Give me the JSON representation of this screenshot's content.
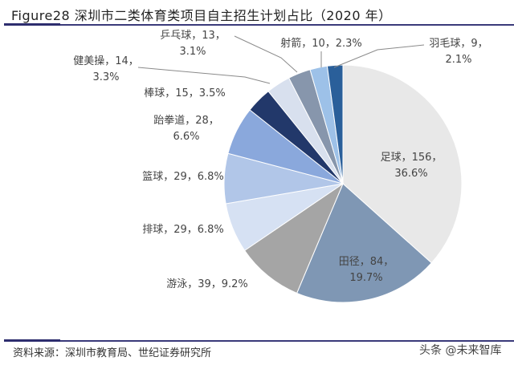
{
  "title": "Figure28 深圳市二类体育类项目自主招生计划占比（2020 年）",
  "source": "资料来源：深圳市教育局、世纪证券研究所",
  "watermark": "头条 @未来智库",
  "chart_data": {
    "type": "pie",
    "title": "深圳市二类体育类项目自主招生计划占比（2020 年）",
    "categories": [
      "足球",
      "田径",
      "游泳",
      "排球",
      "篮球",
      "跆拳道",
      "棒球",
      "健美操",
      "乒乓球",
      "射箭",
      "羽毛球"
    ],
    "values": [
      156,
      84,
      39,
      29,
      29,
      28,
      15,
      14,
      13,
      10,
      9
    ],
    "percentages": [
      36.6,
      19.7,
      9.2,
      6.8,
      6.8,
      6.6,
      3.5,
      3.3,
      3.1,
      2.3,
      2.1
    ],
    "colors": [
      "#e8e8e8",
      "#7f97b4",
      "#a5a5a5",
      "#d6e1f3",
      "#b1c6e8",
      "#8aa8dc",
      "#22386a",
      "#d8e0ee",
      "#8796ac",
      "#9dc1e8",
      "#2a5f9a"
    ],
    "start_angle": "12 o'clock, clockwise",
    "labels": [
      {
        "lines": [
          "足球，156，",
          "36.6%"
        ]
      },
      {
        "lines": [
          "田径，84，",
          "19.7%"
        ]
      },
      {
        "lines": [
          "游泳，39，9.2%"
        ]
      },
      {
        "lines": [
          "排球，29，6.8%"
        ]
      },
      {
        "lines": [
          "篮球，29，6.8%"
        ]
      },
      {
        "lines": [
          "跆拳道，28，",
          "6.6%"
        ]
      },
      {
        "lines": [
          "棒球，15，3.5%"
        ]
      },
      {
        "lines": [
          "健美操，14，",
          "3.3%"
        ]
      },
      {
        "lines": [
          "乒乓球，13，",
          "3.1%"
        ]
      },
      {
        "lines": [
          "射箭，10，2.3%"
        ]
      },
      {
        "lines": [
          "羽毛球，9，",
          "2.1%"
        ]
      }
    ],
    "legend": "none (data labels)"
  }
}
